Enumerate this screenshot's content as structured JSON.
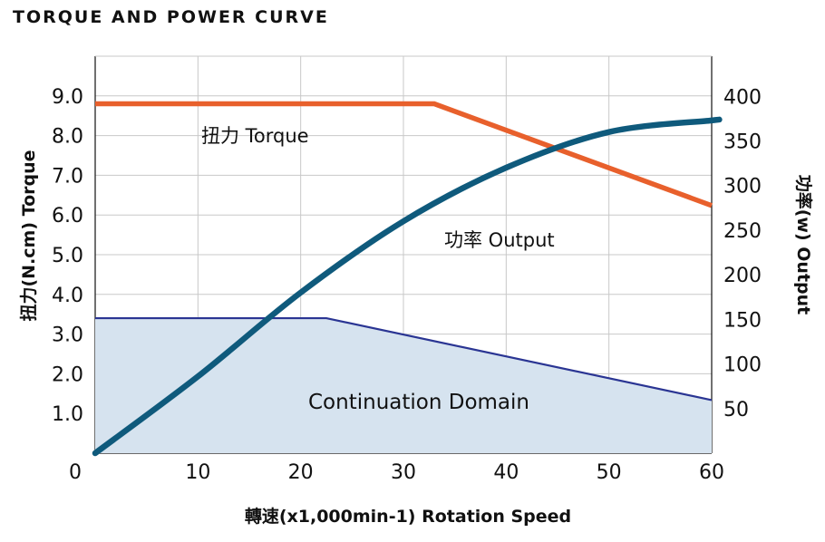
{
  "chart_data": {
    "type": "line",
    "title": "TORQUE AND POWER CURVE",
    "xlabel": "轉速(x1,000min-1) Rotation Speed",
    "ylabel_left": "扭力(N.cm) Torque",
    "ylabel_right": "功率(w) Output",
    "xlim": [
      0,
      60
    ],
    "ylim_left": [
      0,
      10
    ],
    "ylim_right": [
      0,
      445
    ],
    "x_ticks": [
      "0",
      "10",
      "20",
      "30",
      "40",
      "50",
      "60"
    ],
    "y_ticks_left": [
      "1.0",
      "2.0",
      "3.0",
      "4.0",
      "5.0",
      "6.0",
      "7.0",
      "8.0",
      "9.0"
    ],
    "y_ticks_right": [
      "50",
      "100",
      "150",
      "200",
      "250",
      "300",
      "350",
      "400"
    ],
    "grid": true,
    "series": [
      {
        "name": "扭力 Torque",
        "axis": "left",
        "color": "#e8602c",
        "x": [
          0,
          33,
          62.5
        ],
        "y": [
          8.8,
          8.8,
          6.0
        ]
      },
      {
        "name": "功率 Output",
        "axis": "right",
        "color": "#0f5a7c",
        "x": [
          0,
          10,
          20,
          30,
          40,
          50,
          60,
          62.5
        ],
        "y": [
          0,
          86,
          180,
          260,
          320,
          360,
          373,
          373
        ]
      }
    ],
    "region": {
      "name": "Continuation Domain",
      "axis": "left",
      "fill": "#d6e3ef",
      "edge": "#2a3593",
      "x": [
        0,
        22.5,
        62.5
      ],
      "y": [
        3.4,
        3.4,
        1.2
      ]
    }
  }
}
